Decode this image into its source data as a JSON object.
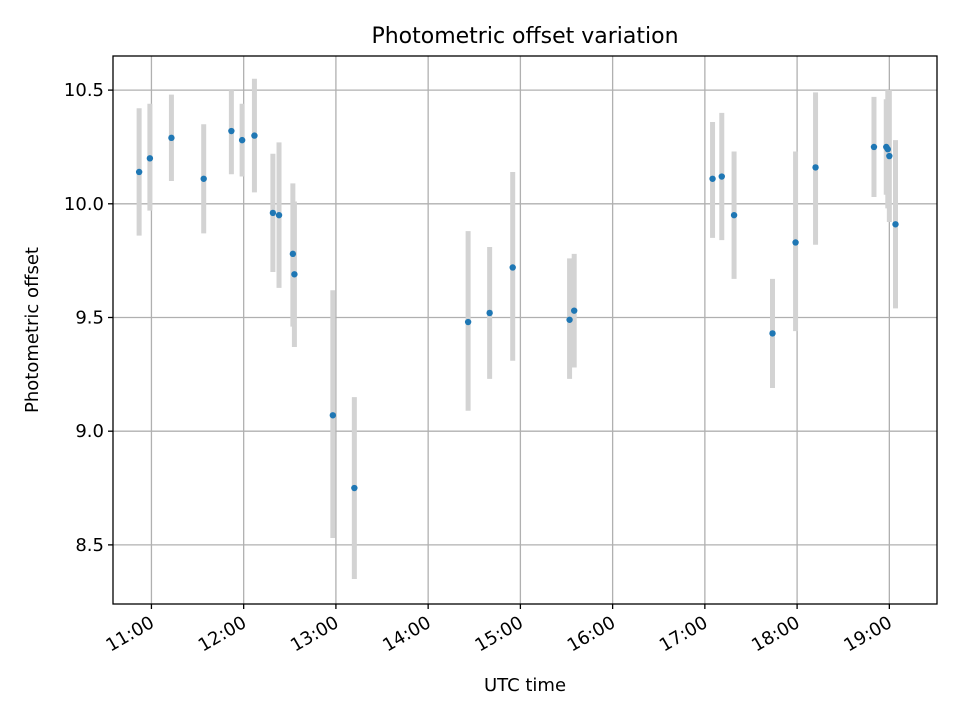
{
  "chart_data": {
    "type": "scatter",
    "title": "Photometric offset variation",
    "xlabel": "UTC time",
    "ylabel": "Photometric offset",
    "xlim": [
      "10:35",
      "19:31"
    ],
    "ylim": [
      8.24,
      10.65
    ],
    "x_ticks": [
      "11:00",
      "12:00",
      "13:00",
      "14:00",
      "15:00",
      "16:00",
      "17:00",
      "18:00",
      "19:00"
    ],
    "y_ticks": [
      "8.5",
      "9.0",
      "9.5",
      "10.0",
      "10.5"
    ],
    "grid": true,
    "colors": {
      "marker": "#1f77b4",
      "errorbar": "#d3d3d3"
    },
    "points": [
      {
        "x": "10:52",
        "y": 10.14,
        "ylo": 9.86,
        "yhi": 10.42
      },
      {
        "x": "10:59",
        "y": 10.2,
        "ylo": 9.97,
        "yhi": 10.44
      },
      {
        "x": "11:13",
        "y": 10.29,
        "ylo": 10.1,
        "yhi": 10.48
      },
      {
        "x": "11:34",
        "y": 10.11,
        "ylo": 9.87,
        "yhi": 10.35
      },
      {
        "x": "11:52",
        "y": 10.32,
        "ylo": 10.13,
        "yhi": 10.5
      },
      {
        "x": "11:59",
        "y": 10.28,
        "ylo": 10.12,
        "yhi": 10.44
      },
      {
        "x": "12:07",
        "y": 10.3,
        "ylo": 10.05,
        "yhi": 10.55
      },
      {
        "x": "12:19",
        "y": 9.96,
        "ylo": 9.7,
        "yhi": 10.22
      },
      {
        "x": "12:23",
        "y": 9.95,
        "ylo": 9.63,
        "yhi": 10.27
      },
      {
        "x": "12:32",
        "y": 9.78,
        "ylo": 9.46,
        "yhi": 10.09
      },
      {
        "x": "12:33",
        "y": 9.69,
        "ylo": 9.37,
        "yhi": 10.01
      },
      {
        "x": "12:58",
        "y": 9.07,
        "ylo": 8.53,
        "yhi": 9.62
      },
      {
        "x": "13:12",
        "y": 8.75,
        "ylo": 8.35,
        "yhi": 9.15
      },
      {
        "x": "14:26",
        "y": 9.48,
        "ylo": 9.09,
        "yhi": 9.88
      },
      {
        "x": "14:40",
        "y": 9.52,
        "ylo": 9.23,
        "yhi": 9.81
      },
      {
        "x": "14:55",
        "y": 9.72,
        "ylo": 9.31,
        "yhi": 10.14
      },
      {
        "x": "15:32",
        "y": 9.49,
        "ylo": 9.23,
        "yhi": 9.76
      },
      {
        "x": "15:35",
        "y": 9.53,
        "ylo": 9.28,
        "yhi": 9.78
      },
      {
        "x": "17:05",
        "y": 10.11,
        "ylo": 9.85,
        "yhi": 10.36
      },
      {
        "x": "17:11",
        "y": 10.12,
        "ylo": 9.84,
        "yhi": 10.4
      },
      {
        "x": "17:19",
        "y": 9.95,
        "ylo": 9.67,
        "yhi": 10.23
      },
      {
        "x": "17:44",
        "y": 9.43,
        "ylo": 9.19,
        "yhi": 9.67
      },
      {
        "x": "17:59",
        "y": 9.83,
        "ylo": 9.44,
        "yhi": 10.23
      },
      {
        "x": "18:12",
        "y": 10.16,
        "ylo": 9.82,
        "yhi": 10.49
      },
      {
        "x": "18:50",
        "y": 10.25,
        "ylo": 10.03,
        "yhi": 10.47
      },
      {
        "x": "18:58",
        "y": 10.25,
        "ylo": 10.04,
        "yhi": 10.46
      },
      {
        "x": "18:59",
        "y": 10.24,
        "ylo": 9.98,
        "yhi": 10.5
      },
      {
        "x": "19:00",
        "y": 10.21,
        "ylo": 9.92,
        "yhi": 10.5
      },
      {
        "x": "19:04",
        "y": 9.91,
        "ylo": 9.54,
        "yhi": 10.28
      }
    ]
  }
}
